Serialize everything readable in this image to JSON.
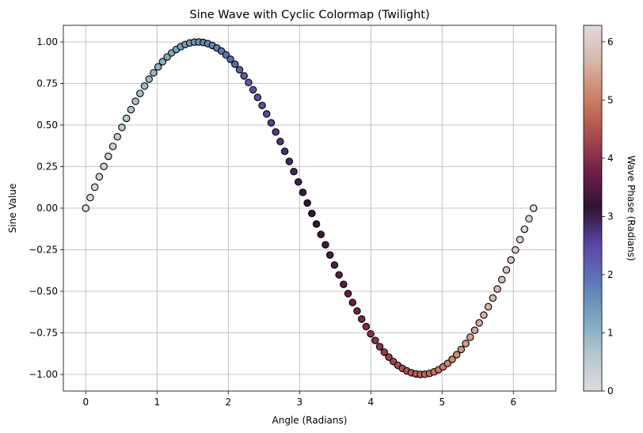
{
  "chart_data": {
    "type": "scatter",
    "title": "Sine Wave with Cyclic Colormap (Twilight)",
    "xlabel": "Angle (Radians)",
    "ylabel": "Sine Value",
    "xlim": [
      -0.314,
      6.597
    ],
    "ylim": [
      -1.1,
      1.1
    ],
    "xticks": [
      0,
      1,
      2,
      3,
      4,
      5,
      6
    ],
    "xtick_labels": [
      "0",
      "1",
      "2",
      "3",
      "4",
      "5",
      "6"
    ],
    "yticks": [
      1.0,
      0.75,
      0.5,
      0.25,
      0.0,
      -0.25,
      -0.5,
      -0.75,
      -1.0
    ],
    "ytick_labels": [
      "1.00",
      "0.75",
      "0.50",
      "0.25",
      "0.00",
      "−0.25",
      "−0.50",
      "−0.75",
      "−1.00"
    ],
    "grid": true,
    "point_count": 100,
    "x_range": [
      0,
      6.2832
    ],
    "function": "sin",
    "marker_edge_color": "#000000",
    "colormap": "twilight",
    "colorbar": {
      "label": "Wave Phase (Radians)",
      "range": [
        0,
        6.2832
      ],
      "ticks": [
        0,
        1,
        2,
        3,
        4,
        5,
        6
      ],
      "tick_labels": [
        "0",
        "1",
        "2",
        "3",
        "4",
        "5",
        "6"
      ],
      "stops": [
        {
          "value": 0.0,
          "color": "#e2d9e2"
        },
        {
          "value": 0.1,
          "color": "#b3c7d0"
        },
        {
          "value": 0.2,
          "color": "#7ba6bf"
        },
        {
          "value": 0.3,
          "color": "#5c78b8"
        },
        {
          "value": 0.4,
          "color": "#5d45a5"
        },
        {
          "value": 0.5,
          "color": "#2f1436"
        },
        {
          "value": 0.6,
          "color": "#6d1f49"
        },
        {
          "value": 0.7,
          "color": "#ad4a4c"
        },
        {
          "value": 0.8,
          "color": "#ca8064"
        },
        {
          "value": 0.9,
          "color": "#d8b6a4"
        },
        {
          "value": 1.0,
          "color": "#e2d9e2"
        }
      ]
    }
  }
}
